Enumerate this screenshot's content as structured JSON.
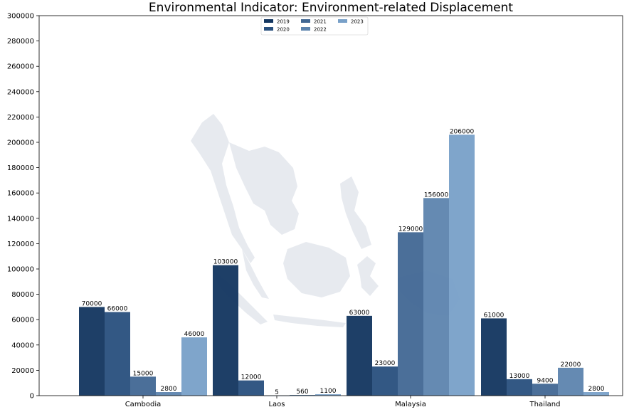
{
  "chart_data": {
    "type": "bar",
    "title": "Environmental Indicator: Environment-related Displacement",
    "xlabel": "",
    "ylabel": "",
    "categories": [
      "Cambodia",
      "Laos",
      "Malaysia",
      "Thailand"
    ],
    "series": [
      {
        "name": "2019",
        "color": "#12355f",
        "values": [
          70000,
          103000,
          63000,
          61000
        ]
      },
      {
        "name": "2020",
        "color": "#284f7d",
        "values": [
          66000,
          12000,
          23000,
          13000
        ]
      },
      {
        "name": "2021",
        "color": "#416793",
        "values": [
          15000,
          5,
          129000,
          9400
        ]
      },
      {
        "name": "2022",
        "color": "#5d84ae",
        "values": [
          2800,
          560,
          156000,
          22000
        ]
      },
      {
        "name": "2023",
        "color": "#78a0c8",
        "values": [
          46000,
          1100,
          206000,
          2800
        ]
      }
    ],
    "ylim": [
      0,
      300000
    ],
    "yticks": [
      0,
      20000,
      40000,
      60000,
      80000,
      100000,
      120000,
      140000,
      160000,
      180000,
      200000,
      220000,
      240000,
      260000,
      280000,
      300000
    ],
    "ytick_labels": [
      "0",
      "20000",
      "40000",
      "60000",
      "80000",
      "100000",
      "120000",
      "140000",
      "160000",
      "180000",
      "200000",
      "220000",
      "240000",
      "260000",
      "280000",
      "300000"
    ],
    "bar_labels": [
      [
        "70000",
        "103000",
        "63000",
        "61000"
      ],
      [
        "66000",
        "12000",
        "23000",
        "13000"
      ],
      [
        "15000",
        "5",
        "129000",
        "9400"
      ],
      [
        "2800",
        "560",
        "156000",
        "22000"
      ],
      [
        "46000",
        "1100",
        "206000",
        "2800"
      ]
    ],
    "legend": {
      "placement": "top-center",
      "columns": 3
    },
    "grid": false,
    "background": "light-grey map silhouette of Southeast Asia"
  }
}
